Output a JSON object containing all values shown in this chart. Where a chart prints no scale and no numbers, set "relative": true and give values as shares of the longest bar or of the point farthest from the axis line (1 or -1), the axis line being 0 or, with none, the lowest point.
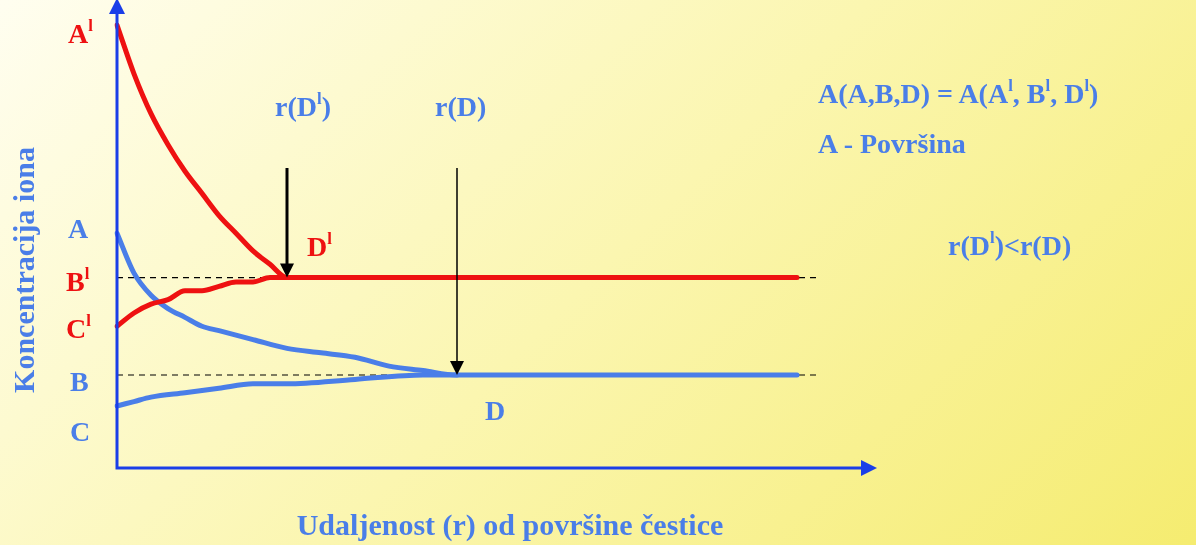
{
  "chart_data": {
    "type": "line",
    "relative": true,
    "xlabel": "Udaljenost (r) od površine čestice",
    "ylabel": "Koncentracija iona",
    "categories": [
      null,
      null,
      null,
      null,
      null,
      null,
      null,
      null,
      null,
      null,
      null,
      null,
      null,
      null,
      null,
      null,
      null,
      null,
      null,
      null,
      null,
      null,
      null,
      null,
      null,
      null,
      null,
      null,
      null,
      null,
      null,
      null,
      null,
      null,
      null,
      null,
      null,
      null,
      null,
      null,
      null,
      null,
      null,
      null,
      null
    ],
    "series": [
      {
        "color": "#ee1111",
        "values": [
          1,
          0.89,
          0.8,
          0.73,
          0.67,
          0.62,
          0.57,
          0.53,
          0.49,
          0.46,
          0.43,
          0.43,
          0.43,
          0.43,
          0.43,
          0.43,
          0.43,
          0.43,
          0.43,
          0.43,
          0.43,
          0.43,
          0.43,
          0.43,
          0.43,
          0.43,
          0.43,
          0.43,
          0.43,
          0.43,
          0.43,
          0.43,
          0.43,
          0.43,
          0.43,
          0.43,
          0.43,
          0.43,
          0.43,
          0.43,
          0.43,
          null,
          null,
          null,
          null
        ]
      },
      {
        "color": "#ee1111",
        "values": [
          0.32,
          0.35,
          0.37,
          0.38,
          0.4,
          0.4,
          0.41,
          0.42,
          0.42,
          0.43,
          0.43,
          null,
          null,
          null,
          null,
          null,
          null,
          null,
          null,
          null,
          null,
          null,
          null,
          null,
          null,
          null,
          null,
          null,
          null,
          null,
          null,
          null,
          null,
          null,
          null,
          null,
          null,
          null,
          null,
          null,
          null,
          null,
          null,
          null,
          null
        ]
      },
      {
        "color": "#4a7ee8",
        "values": [
          0.53,
          0.44,
          0.39,
          0.36,
          0.34,
          0.32,
          0.31,
          0.3,
          0.29,
          null,
          0.27,
          null,
          0.26,
          null,
          0.25,
          null,
          0.23,
          null,
          0.22,
          null,
          0.21,
          0.21,
          0.21,
          0.21,
          0.21,
          0.21,
          0.21,
          0.21,
          0.21,
          0.21,
          0.21,
          0.21,
          0.21,
          0.21,
          0.21,
          0.21,
          0.21,
          0.21,
          0.21,
          0.21,
          0.21,
          null,
          null,
          null,
          null
        ]
      },
      {
        "color": "#4a7ee8",
        "values": [
          0.14,
          0.15,
          0.16,
          null,
          0.17,
          null,
          0.18,
          null,
          0.19,
          null,
          0.19,
          null,
          null,
          null,
          0.2,
          null,
          null,
          null,
          0.21,
          null,
          0.21,
          null,
          null,
          null,
          null,
          null,
          null,
          null,
          null,
          null,
          null,
          null,
          null,
          null,
          null,
          null,
          null,
          null,
          null,
          null,
          null,
          null,
          null,
          null,
          null
        ]
      }
    ],
    "ref_lines": [
      {
        "axis": "y",
        "value": 0.43,
        "color": "#000000",
        "line_style": "dashed"
      },
      {
        "axis": "y",
        "value": 0.21,
        "color": "#000000",
        "line_style": "dashed"
      }
    ],
    "annotations": [
      "A$^{l}$",
      "A",
      "B$^{l}$",
      "C$^{l}$",
      "B",
      "C",
      "D$^{l}$",
      "D",
      "r(D$^{l}$)",
      "r(D)",
      "A(A,B,D) = A(A$^{l}$, B$^{l}$, D$^{l}$)",
      "A - Površina",
      "r(D$^{l}$)<r(D)"
    ]
  }
}
